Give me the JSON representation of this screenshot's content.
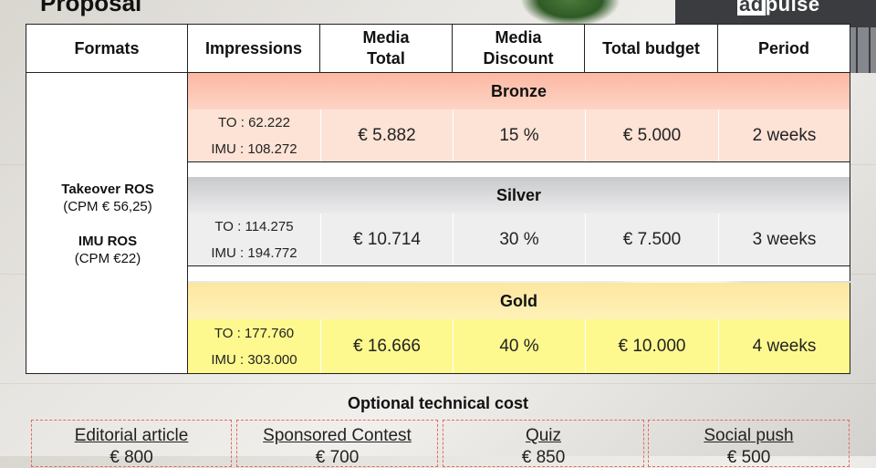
{
  "slide": {
    "title": "Proposal"
  },
  "logo": {
    "text_a": "ad",
    "text_b": "pulse"
  },
  "table": {
    "headers": [
      {
        "key": "formats",
        "label": "Formats"
      },
      {
        "key": "impressions",
        "label": "Impressions"
      },
      {
        "key": "media_total",
        "label_1": "Media",
        "label_2": "Total"
      },
      {
        "key": "media_discount",
        "label_1": "Media",
        "label_2": "Discount"
      },
      {
        "key": "total_budget",
        "label": "Total budget"
      },
      {
        "key": "period",
        "label": "Period"
      }
    ],
    "formats": {
      "takeover": {
        "name": "Takeover ROS",
        "cpm": "(CPM € 56,25)"
      },
      "imu": {
        "name": "IMU ROS",
        "cpm": "(CPM €22)"
      }
    },
    "tiers": [
      {
        "name": "Bronze",
        "to": "TO : 62.222",
        "imu": "IMU : 108.272",
        "media_total": "€ 5.882",
        "discount": "15 %",
        "budget": "€ 5.000",
        "period": "2 weeks",
        "color": "#fde3d6"
      },
      {
        "name": "Silver",
        "to": "TO : 114.275",
        "imu": "IMU : 194.772",
        "media_total": "€ 10.714",
        "discount": "30 %",
        "budget": "€ 7.500",
        "period": "3 weeks",
        "color": "#eeeeee"
      },
      {
        "name": "Gold",
        "to": "TO : 177.760",
        "imu": "IMU : 303.000",
        "media_total": "€ 16.666",
        "discount": "40 %",
        "budget": "€ 10.000",
        "period": "4 weeks",
        "color": "#fef98e"
      }
    ]
  },
  "optional": {
    "title": "Optional technical cost",
    "items": [
      {
        "label": "Editorial article",
        "price": "€ 800"
      },
      {
        "label": "Sponsored Contest",
        "price": "€ 700"
      },
      {
        "label": "Quiz",
        "price": "€ 850"
      },
      {
        "label": "Social push",
        "price": "€ 500"
      }
    ],
    "border_color": "#e06c5a"
  }
}
